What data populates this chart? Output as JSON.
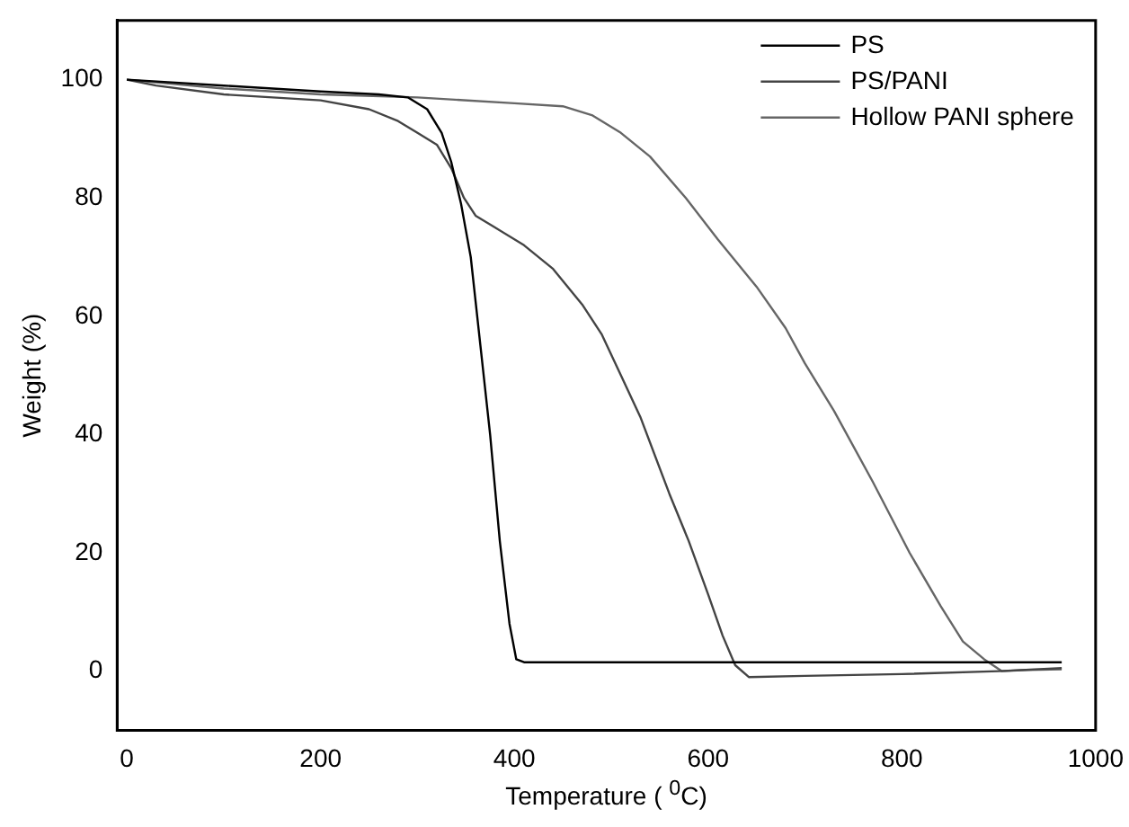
{
  "chart_data": {
    "type": "line",
    "xlabel": "Temperature ( $^{0}$C)",
    "ylabel": "Weight (%)",
    "xlim": [
      -10,
      1000
    ],
    "xticks": [
      0,
      200,
      400,
      600,
      800,
      1000
    ],
    "ylim": [
      -10,
      110
    ],
    "yticks": [
      0,
      20,
      40,
      60,
      80,
      100
    ],
    "grid": false,
    "legend": "top right",
    "marker": "none",
    "line_style": "solid",
    "series": [
      {
        "name": "PS",
        "color": "#000000",
        "x": [
          0,
          50,
          100,
          200,
          260,
          290,
          310,
          325,
          335,
          345,
          355,
          365,
          375,
          385,
          395,
          402,
          410,
          450,
          600,
          800,
          965
        ],
        "values": [
          100,
          99.5,
          99,
          98,
          97.5,
          97,
          95,
          91,
          86,
          79,
          70,
          55,
          40,
          22,
          8,
          2,
          1.5,
          1.5,
          1.5,
          1.5,
          1.5
        ]
      },
      {
        "name": "PS/PANI",
        "color": "#444444",
        "x": [
          0,
          30,
          100,
          200,
          250,
          280,
          300,
          320,
          335,
          348,
          360,
          380,
          410,
          440,
          470,
          490,
          510,
          530,
          560,
          580,
          600,
          615,
          628,
          642,
          700,
          800,
          900,
          965
        ],
        "values": [
          100,
          99,
          97.5,
          96.5,
          95,
          93,
          91,
          89,
          85,
          80,
          77,
          75,
          72,
          68,
          62,
          57,
          50,
          43,
          30,
          22,
          13,
          6,
          1,
          -1,
          -0.8,
          -0.5,
          0,
          0.5
        ]
      },
      {
        "name": "Hollow PANI sphere",
        "color": "#666666",
        "x": [
          0,
          100,
          200,
          300,
          400,
          450,
          480,
          510,
          540,
          577,
          610,
          650,
          680,
          700,
          730,
          770,
          808,
          840,
          863,
          885,
          903,
          930,
          965
        ],
        "values": [
          100,
          98.5,
          97.5,
          97,
          96,
          95.5,
          94,
          91,
          87,
          80,
          73,
          65,
          58,
          52,
          44,
          32,
          20,
          11,
          5,
          2,
          0,
          0.2,
          0.3
        ]
      }
    ]
  }
}
